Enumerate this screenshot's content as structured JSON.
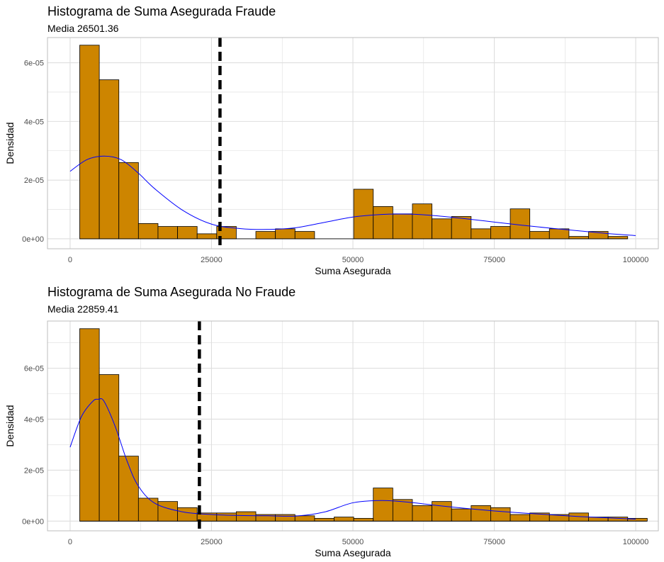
{
  "chart_data": [
    {
      "type": "bar",
      "title": "Histograma de Suma Asegurada Fraude",
      "subtitle": "Media 26501.36",
      "xlabel": "Suma Asegurada",
      "ylabel": "Densidad",
      "xlim": [
        -4000,
        104000
      ],
      "ylim": [
        -3.4e-06,
        6.86e-05
      ],
      "x_ticks": [
        0,
        25000,
        50000,
        75000,
        100000
      ],
      "x_tick_labels": [
        "0",
        "25000",
        "50000",
        "75000",
        "100000"
      ],
      "y_ticks": [
        0,
        2e-05,
        4e-05,
        6e-05
      ],
      "y_tick_labels": [
        "0e+00",
        "2e-05",
        "4e-05",
        "6e-05"
      ],
      "mean_line": 26501.36,
      "bins": {
        "start": 1700,
        "width": 3460,
        "values": [
          6.6e-05,
          5.42e-05,
          2.6e-05,
          5.2e-06,
          4.2e-06,
          4.2e-06,
          1.7e-06,
          4.2e-06,
          0,
          2.5e-06,
          3.4e-06,
          2.5e-06,
          0,
          0,
          1.69e-05,
          1.1e-05,
          8.5e-06,
          1.19e-05,
          6.8e-06,
          7.6e-06,
          3.4e-06,
          4.2e-06,
          1.02e-05,
          2.5e-06,
          3.4e-06,
          8e-07,
          2.5e-06,
          8e-07
        ]
      },
      "density": {
        "x": [
          0,
          3000,
          6000,
          9000,
          12000,
          15000,
          20000,
          25000,
          30000,
          35000,
          40000,
          45000,
          50000,
          55000,
          60000,
          65000,
          70000,
          75000,
          80000,
          85000,
          90000,
          95000,
          100000
        ],
        "y": [
          2.3e-05,
          2.7e-05,
          2.82e-05,
          2.7e-05,
          2.25e-05,
          1.7e-05,
          9.6e-06,
          5e-06,
          3.5e-06,
          3.2e-06,
          3.8e-06,
          5.6e-06,
          7.4e-06,
          8.3e-06,
          8.4e-06,
          7.8e-06,
          6.8e-06,
          5.7e-06,
          4.6e-06,
          3.6e-06,
          2.7e-06,
          1.8e-06,
          1.1e-06
        ]
      },
      "colors": {
        "bar_fill": "#CD8500",
        "bar_stroke": "#000000",
        "density": "#0000ff",
        "mean_line": "#000000",
        "grid": "#dedede",
        "border": "#bdbdbd"
      }
    },
    {
      "type": "bar",
      "title": "Histograma de Suma Asegurada No Fraude",
      "subtitle": "Media 22859.41",
      "xlabel": "Suma Asegurada",
      "ylabel": "Densidad",
      "xlim": [
        -4000,
        104000
      ],
      "ylim": [
        -3.8e-06,
        7.85e-05
      ],
      "x_ticks": [
        0,
        25000,
        50000,
        75000,
        100000
      ],
      "x_tick_labels": [
        "0",
        "25000",
        "50000",
        "75000",
        "100000"
      ],
      "y_ticks": [
        0,
        2e-05,
        4e-05,
        6e-05
      ],
      "y_tick_labels": [
        "0e+00",
        "2e-05",
        "4e-05",
        "6e-05"
      ],
      "mean_line": 22859.41,
      "bins": {
        "start": 1700,
        "width": 3460,
        "values": [
          7.55e-05,
          5.75e-05,
          2.55e-05,
          9e-06,
          7.7e-06,
          5.3e-06,
          3.2e-06,
          3.2e-06,
          3.7e-06,
          2.6e-06,
          2.6e-06,
          2.1e-06,
          1.1e-06,
          1.6e-06,
          1.1e-06,
          1.3e-05,
          8.5e-06,
          6.1e-06,
          7.7e-06,
          4.8e-06,
          6.1e-06,
          5.3e-06,
          2.6e-06,
          3.2e-06,
          2.6e-06,
          3.2e-06,
          1.6e-06,
          1.6e-06,
          1.1e-06
        ]
      },
      "density": {
        "x": [
          0,
          2000,
          4000,
          5000,
          6000,
          8000,
          10000,
          12000,
          15000,
          20000,
          25000,
          30000,
          35000,
          40000,
          45000,
          50000,
          55000,
          60000,
          65000,
          70000,
          75000,
          80000,
          85000,
          90000,
          95000,
          100000
        ],
        "y": [
          2.9e-05,
          4.1e-05,
          4.7e-05,
          4.78e-05,
          4.7e-05,
          3.7e-05,
          2.4e-05,
          1.4e-05,
          7e-06,
          3.6e-06,
          2.6e-06,
          2.2e-06,
          2.1e-06,
          2e-06,
          3.6e-06,
          7.2e-06,
          8.1e-06,
          7.4e-06,
          6.1e-06,
          5e-06,
          4e-06,
          3.2e-06,
          2.5e-06,
          1.8e-06,
          1.3e-06,
          8e-07
        ]
      },
      "colors": {
        "bar_fill": "#CD8500",
        "bar_stroke": "#000000",
        "density": "#0000ff",
        "mean_line": "#000000",
        "grid": "#dedede",
        "border": "#bdbdbd"
      }
    }
  ]
}
